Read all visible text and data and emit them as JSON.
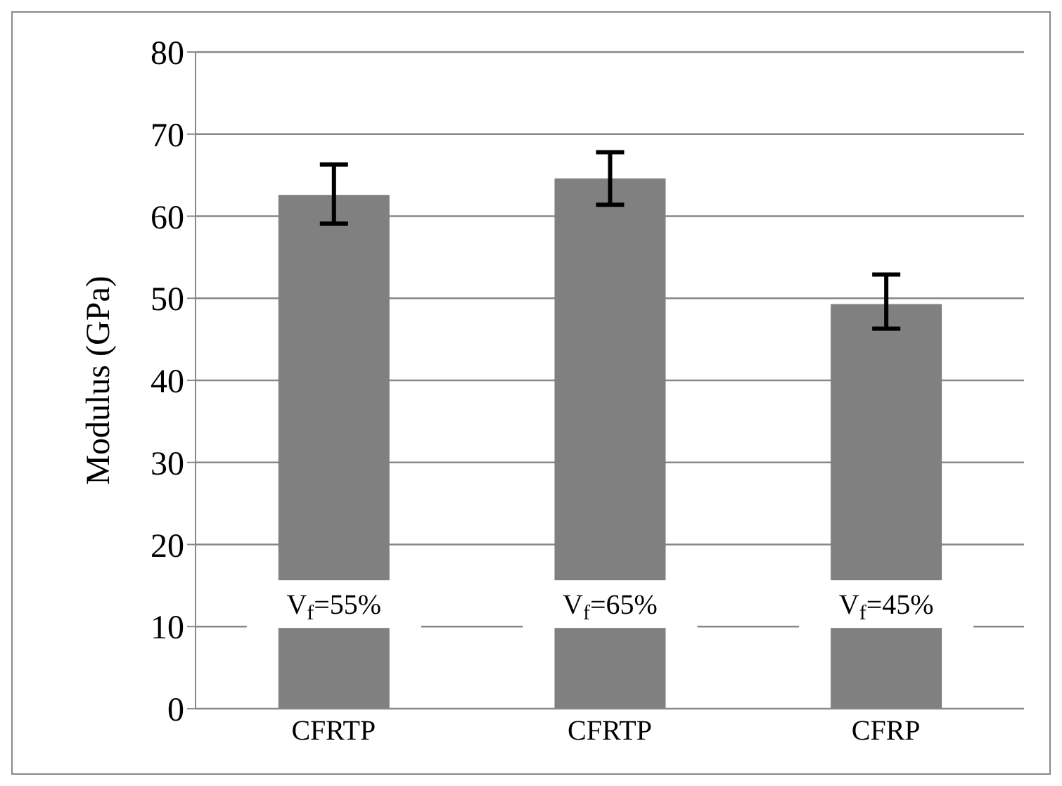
{
  "chart_data": {
    "type": "bar",
    "ylabel": "Modulus (GPa)",
    "categories": [
      "CFRTP",
      "CFRTP",
      "CFRP"
    ],
    "values": [
      62.6,
      64.6,
      49.3
    ],
    "errors": [
      [
        59.1,
        66.3
      ],
      [
        61.4,
        67.8
      ],
      [
        46.3,
        52.9
      ]
    ],
    "color": "#808080",
    "ylim": [
      0,
      80
    ],
    "yticks": [
      0,
      10,
      20,
      30,
      40,
      50,
      60,
      70,
      80
    ],
    "grid": "y",
    "annotations": [
      "V$_{f}$=55%",
      "V$_{f}$=65%",
      "V$_{f}$=45%"
    ]
  }
}
